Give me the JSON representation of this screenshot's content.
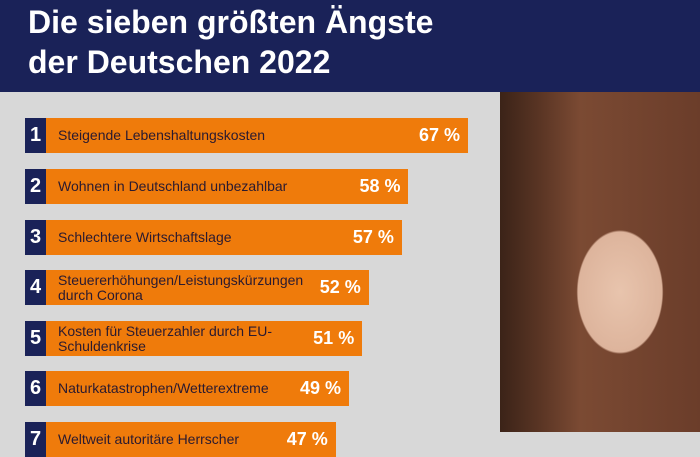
{
  "title_line1": "Die sieben größten Ängste",
  "title_line2": "der Deutschen 2022",
  "colors": {
    "header": "#1a2258",
    "bar": "#ef7b0b",
    "background": "#d8d8d8"
  },
  "chart_data": {
    "type": "bar",
    "orientation": "horizontal",
    "title": "Die sieben größten Ängste der Deutschen 2022",
    "categories": [
      "Steigende Lebenshaltungskosten",
      "Wohnen in Deutschland unbezahlbar",
      "Schlechtere Wirtschaftslage",
      "Steuererhöhungen/Leistungskürzungen durch Corona",
      "Kosten für Steuerzahler durch EU-Schuldenkrise",
      "Naturkatastrophen/Wetterextreme",
      "Weltweit autoritäre Herrscher"
    ],
    "ranks": [
      "1",
      "2",
      "3",
      "4",
      "5",
      "6",
      "7"
    ],
    "values": [
      67,
      58,
      57,
      52,
      51,
      49,
      47
    ],
    "value_labels": [
      "67 %",
      "58 %",
      "57 %",
      "52 %",
      "51 %",
      "49 %",
      "47 %"
    ],
    "unit": "%"
  },
  "photo": "woman-with-hand-on-mouth"
}
